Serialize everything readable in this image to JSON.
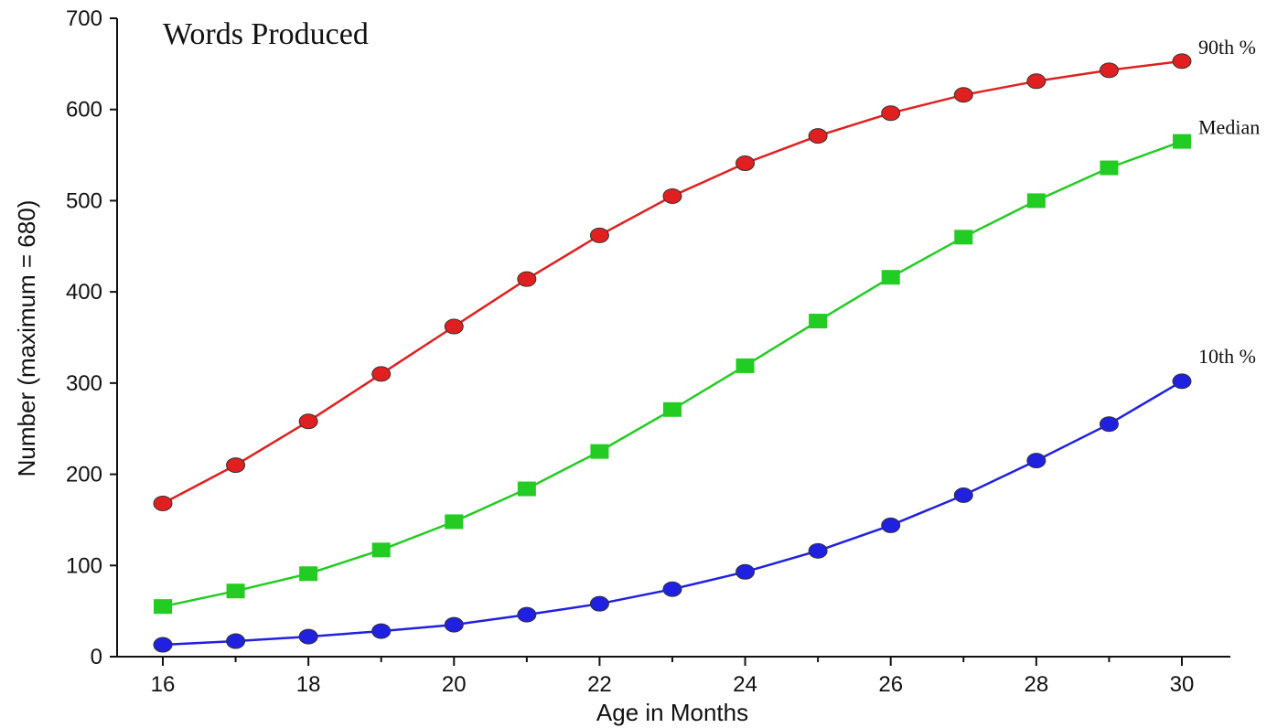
{
  "chart_data": {
    "type": "line",
    "title": "Words Produced",
    "xlabel": "Age in Months",
    "ylabel": "Number (maximum = 680)",
    "xlim": [
      16,
      30
    ],
    "ylim": [
      0,
      700
    ],
    "x_ticks": [
      16,
      18,
      20,
      22,
      24,
      26,
      28,
      30
    ],
    "y_ticks": [
      0,
      100,
      200,
      300,
      400,
      500,
      600,
      700
    ],
    "grid": false,
    "x": [
      16,
      17,
      18,
      19,
      20,
      21,
      22,
      23,
      24,
      25,
      26,
      27,
      28,
      29,
      30
    ],
    "series": [
      {
        "name": "90th %",
        "color": "#e02020",
        "marker": "circle",
        "values": [
          168,
          210,
          258,
          310,
          362,
          414,
          462,
          505,
          541,
          571,
          596,
          616,
          631,
          643,
          653
        ]
      },
      {
        "name": "Median",
        "color": "#22cc22",
        "marker": "square",
        "values": [
          55,
          72,
          91,
          117,
          148,
          184,
          225,
          271,
          319,
          368,
          416,
          460,
          500,
          536,
          565
        ]
      },
      {
        "name": "10th %",
        "color": "#2020e0",
        "marker": "circle",
        "values": [
          13,
          17,
          22,
          28,
          35,
          46,
          58,
          74,
          93,
          116,
          144,
          177,
          215,
          255,
          302
        ]
      }
    ]
  }
}
